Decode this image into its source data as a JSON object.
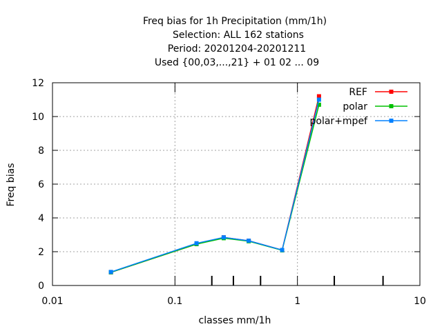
{
  "chart_data": {
    "type": "line",
    "title_lines": [
      "Freq bias  for 1h Precipitation (mm/1h)",
      "Selection: ALL    162 stations",
      "Period: 20201204-20201211",
      "Used {00,03,...,21} + 01 02 ... 09"
    ],
    "xlabel": "classes mm/1h",
    "ylabel": "Freq bias",
    "x_scale": "log",
    "xlim": [
      0.01,
      10
    ],
    "ylim": [
      0,
      12
    ],
    "x_ticks": [
      {
        "value": 0.01,
        "label": "0.01"
      },
      {
        "value": 0.1,
        "label": "0.1"
      },
      {
        "value": 1,
        "label": "1"
      },
      {
        "value": 10,
        "label": "10"
      }
    ],
    "x_minor_ticks": [
      0.2,
      0.3,
      0.5,
      2,
      5
    ],
    "y_ticks": [
      {
        "value": 0,
        "label": "0"
      },
      {
        "value": 2,
        "label": "2"
      },
      {
        "value": 4,
        "label": "4"
      },
      {
        "value": 6,
        "label": "6"
      },
      {
        "value": 8,
        "label": "8"
      },
      {
        "value": 10,
        "label": "10"
      },
      {
        "value": 12,
        "label": "12"
      }
    ],
    "grid": true,
    "legend_position": "top-right",
    "series": [
      {
        "name": "REF",
        "color": "#ff0000",
        "x": [
          0.03,
          0.15,
          0.25,
          0.4,
          0.75,
          1.5
        ],
        "y": [
          0.78,
          2.45,
          2.85,
          2.65,
          2.1,
          11.2
        ]
      },
      {
        "name": "polar",
        "color": "#00c000",
        "x": [
          0.03,
          0.15,
          0.25,
          0.4,
          0.75,
          1.5
        ],
        "y": [
          0.78,
          2.45,
          2.8,
          2.62,
          2.08,
          10.7
        ]
      },
      {
        "name": "polar+mpef",
        "color": "#0080ff",
        "x": [
          0.03,
          0.15,
          0.25,
          0.4,
          0.75,
          1.5
        ],
        "y": [
          0.8,
          2.5,
          2.85,
          2.65,
          2.1,
          11.0
        ]
      }
    ]
  }
}
